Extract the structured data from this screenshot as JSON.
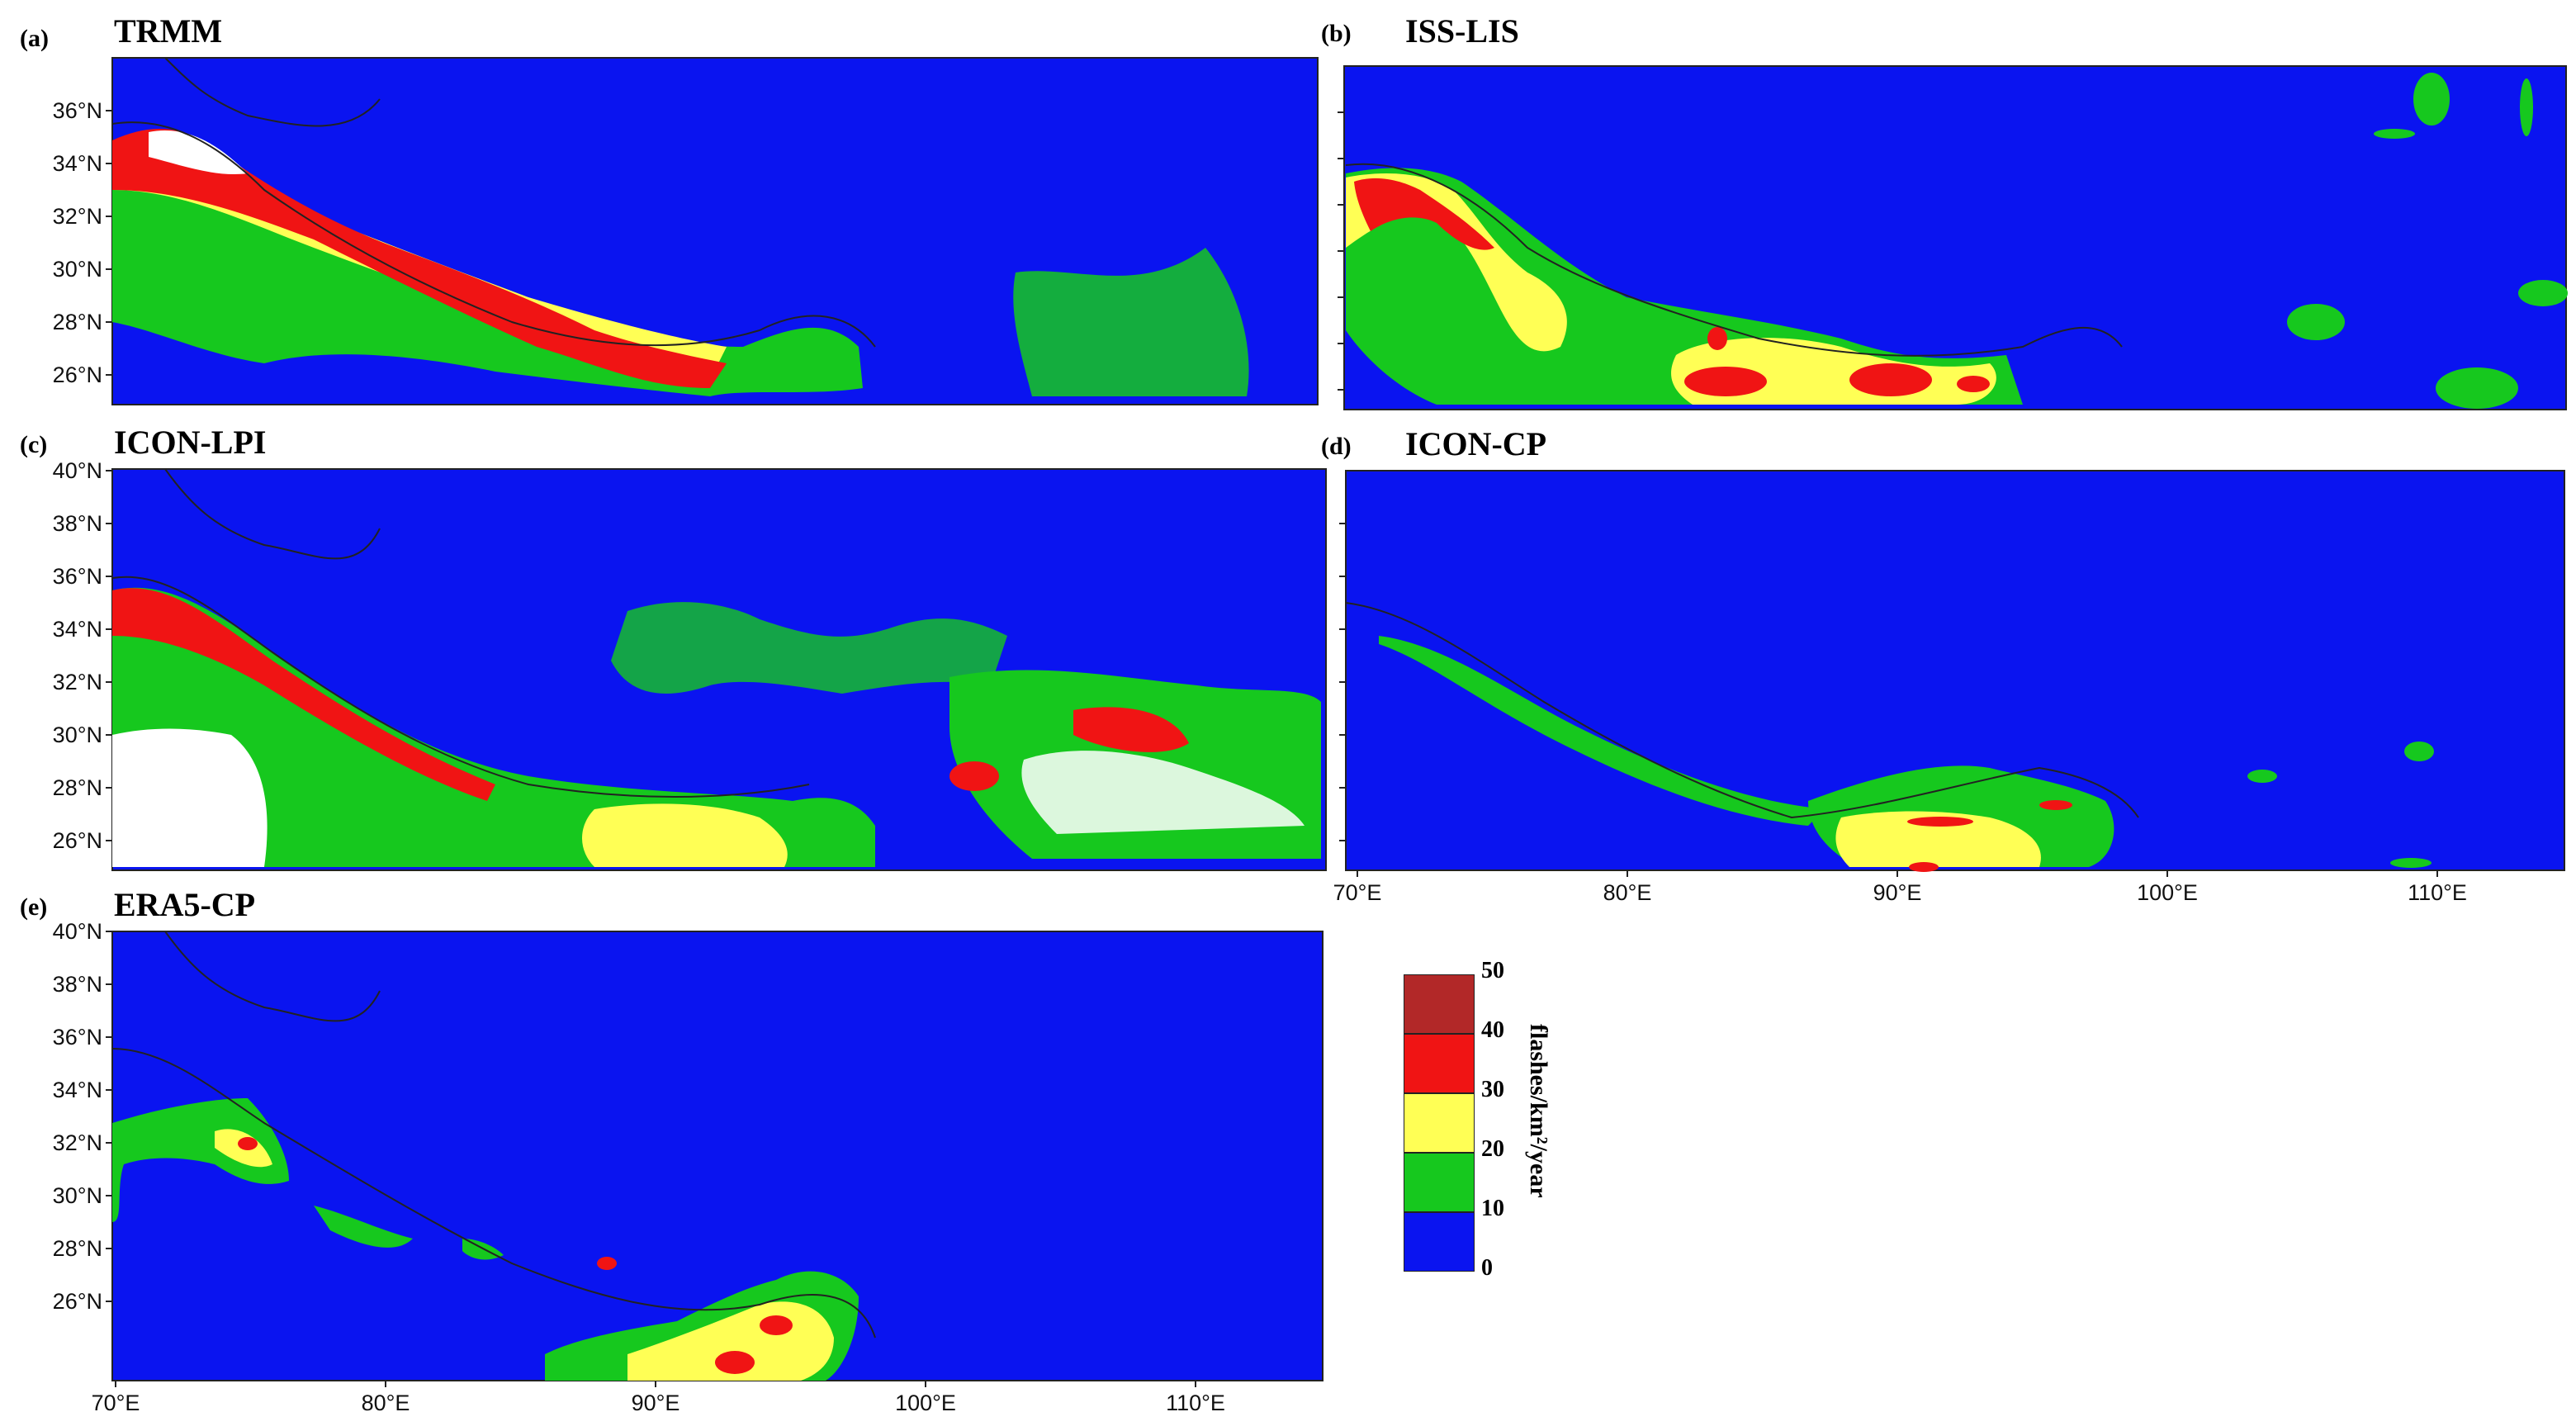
{
  "colors": {
    "bin_0_10": "#0a14f0",
    "bin_10_20": "#16c81e",
    "bin_20_30": "#ffff55",
    "bin_30_40": "#f01414",
    "bin_40_50": "#b22828",
    "above_50": "#ffffff",
    "border": "#222222"
  },
  "panels": [
    {
      "key": "a",
      "id_label": "(a)",
      "title": "TRMM",
      "lat_ticks": [
        "36°N",
        "34°N",
        "32°N",
        "30°N",
        "28°N",
        "26°N"
      ],
      "lon_ticks": []
    },
    {
      "key": "b",
      "id_label": "(b)",
      "title": "ISS-LIS",
      "lat_ticks": [],
      "lon_ticks": []
    },
    {
      "key": "c",
      "id_label": "(c)",
      "title": "ICON-LPI",
      "lat_ticks": [
        "40°N",
        "38°N",
        "36°N",
        "34°N",
        "32°N",
        "30°N",
        "28°N",
        "26°N"
      ],
      "lon_ticks": []
    },
    {
      "key": "d",
      "id_label": "(d)",
      "title": "ICON-CP",
      "lat_ticks": [],
      "lon_ticks": [
        "70°E",
        "80°E",
        "90°E",
        "100°E",
        "110°E"
      ]
    },
    {
      "key": "e",
      "id_label": "(e)",
      "title": "ERA5-CP",
      "lat_ticks": [
        "40°N",
        "38°N",
        "36°N",
        "34°N",
        "32°N",
        "30°N",
        "28°N",
        "26°N"
      ],
      "lon_ticks": [
        "70°E",
        "80°E",
        "90°E",
        "100°E",
        "110°E"
      ]
    }
  ],
  "colorbar": {
    "levels": [
      "50",
      "40",
      "30",
      "20",
      "10",
      "0"
    ],
    "unit": "flashes/km²/year"
  }
}
